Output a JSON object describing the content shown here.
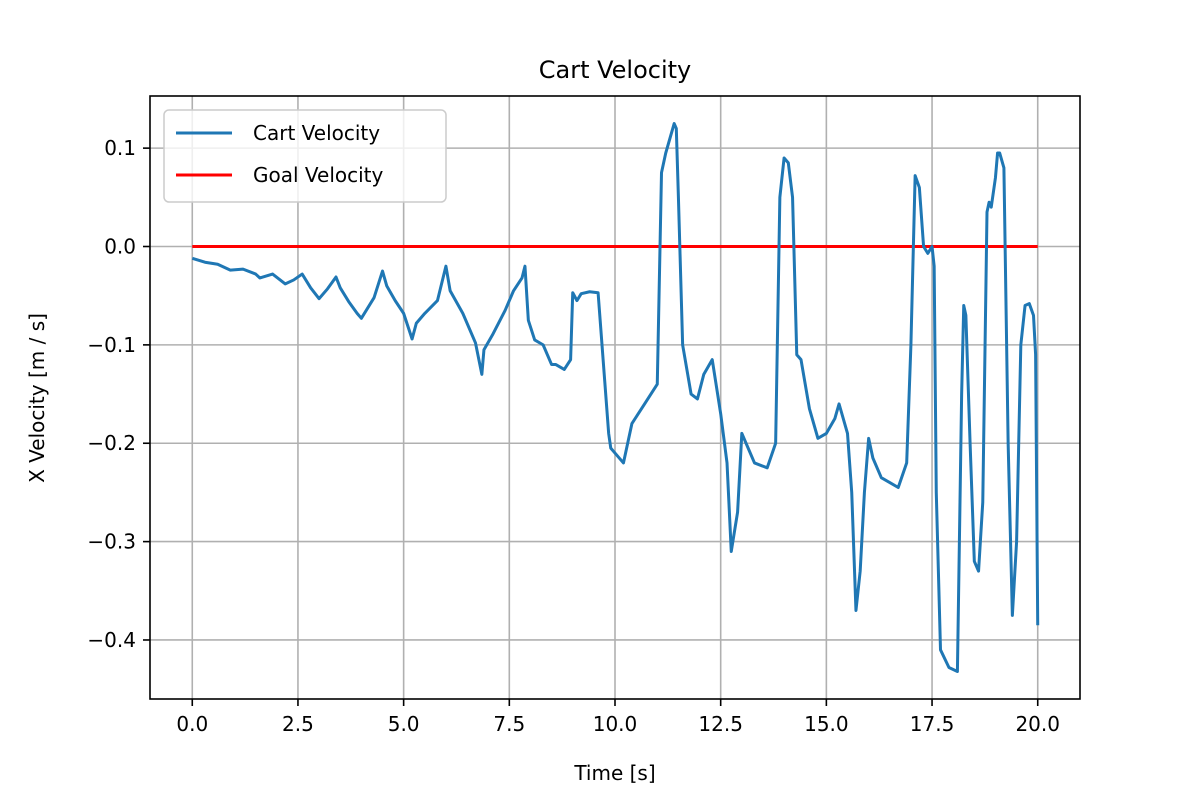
{
  "chart_data": {
    "type": "line",
    "title": "Cart Velocity",
    "xlabel": "Time [s]",
    "ylabel": "X Velocity [m / s]",
    "xlim": [
      -1.0,
      21.0
    ],
    "ylim": [
      -0.46,
      0.153
    ],
    "xticks": [
      0.0,
      2.5,
      5.0,
      7.5,
      10.0,
      12.5,
      15.0,
      17.5,
      20.0
    ],
    "xtick_labels": [
      "0.0",
      "2.5",
      "5.0",
      "7.5",
      "10.0",
      "12.5",
      "15.0",
      "17.5",
      "20.0"
    ],
    "yticks": [
      0.1,
      0.0,
      -0.1,
      -0.2,
      -0.3,
      -0.4
    ],
    "ytick_labels": [
      "0.1",
      "0.0",
      "−0.1",
      "−0.2",
      "−0.3",
      "−0.4"
    ],
    "grid": true,
    "legend_position": "top-left",
    "series": [
      {
        "name": "Cart Velocity",
        "color": "#1f77b4",
        "x": [
          0.0,
          0.3,
          0.6,
          0.9,
          1.2,
          1.5,
          1.6,
          1.9,
          2.2,
          2.4,
          2.6,
          2.8,
          3.0,
          3.2,
          3.4,
          3.5,
          3.7,
          3.9,
          4.0,
          4.3,
          4.5,
          4.6,
          4.8,
          5.0,
          5.2,
          5.3,
          5.5,
          5.8,
          6.0,
          6.1,
          6.4,
          6.7,
          6.85,
          6.9,
          7.1,
          7.4,
          7.6,
          7.8,
          7.87,
          7.95,
          8.1,
          8.3,
          8.5,
          8.6,
          8.8,
          8.95,
          9.0,
          9.1,
          9.2,
          9.4,
          9.6,
          9.85,
          9.9,
          10.0,
          10.2,
          10.4,
          10.7,
          11.0,
          11.1,
          11.2,
          11.3,
          11.4,
          11.45,
          11.5,
          11.6,
          11.8,
          11.95,
          12.1,
          12.3,
          12.5,
          12.65,
          12.75,
          12.9,
          13.0,
          13.1,
          13.3,
          13.6,
          13.8,
          13.9,
          14.0,
          14.1,
          14.2,
          14.3,
          14.4,
          14.6,
          14.8,
          15.0,
          15.2,
          15.3,
          15.5,
          15.6,
          15.7,
          15.8,
          15.9,
          16.0,
          16.1,
          16.3,
          16.5,
          16.7,
          16.9,
          17.0,
          17.1,
          17.2,
          17.3,
          17.4,
          17.5,
          17.55,
          17.6,
          17.7,
          17.9,
          18.1,
          18.2,
          18.25,
          18.3,
          18.4,
          18.5,
          18.6,
          18.7,
          18.8,
          18.85,
          18.9,
          19.0,
          19.05,
          19.1,
          19.2,
          19.3,
          19.4,
          19.5,
          19.6,
          19.7,
          19.8,
          19.9,
          19.95,
          20.0
        ],
        "values": [
          -0.012,
          -0.016,
          -0.018,
          -0.024,
          -0.023,
          -0.028,
          -0.032,
          -0.028,
          -0.038,
          -0.034,
          -0.028,
          -0.042,
          -0.053,
          -0.043,
          -0.031,
          -0.042,
          -0.056,
          -0.068,
          -0.073,
          -0.052,
          -0.025,
          -0.04,
          -0.055,
          -0.068,
          -0.094,
          -0.078,
          -0.068,
          -0.055,
          -0.02,
          -0.045,
          -0.068,
          -0.098,
          -0.13,
          -0.105,
          -0.09,
          -0.065,
          -0.045,
          -0.032,
          -0.02,
          -0.075,
          -0.095,
          -0.1,
          -0.12,
          -0.12,
          -0.125,
          -0.115,
          -0.047,
          -0.055,
          -0.048,
          -0.046,
          -0.047,
          -0.19,
          -0.205,
          -0.21,
          -0.22,
          -0.18,
          -0.16,
          -0.14,
          0.075,
          0.095,
          0.11,
          0.125,
          0.12,
          0.05,
          -0.1,
          -0.15,
          -0.155,
          -0.13,
          -0.115,
          -0.17,
          -0.22,
          -0.31,
          -0.27,
          -0.19,
          -0.2,
          -0.22,
          -0.225,
          -0.2,
          0.05,
          0.09,
          0.085,
          0.05,
          -0.11,
          -0.115,
          -0.165,
          -0.195,
          -0.19,
          -0.175,
          -0.16,
          -0.19,
          -0.25,
          -0.37,
          -0.33,
          -0.25,
          -0.195,
          -0.215,
          -0.235,
          -0.24,
          -0.245,
          -0.22,
          -0.1,
          0.072,
          0.06,
          0.0,
          -0.007,
          0.0,
          -0.02,
          -0.25,
          -0.41,
          -0.428,
          -0.432,
          -0.15,
          -0.06,
          -0.07,
          -0.2,
          -0.32,
          -0.33,
          -0.26,
          0.035,
          0.045,
          0.04,
          0.07,
          0.095,
          0.095,
          0.08,
          -0.2,
          -0.375,
          -0.3,
          -0.1,
          -0.06,
          -0.058,
          -0.07,
          -0.11,
          -0.385
        ]
      },
      {
        "name": "Goal Velocity",
        "color": "#ff0000",
        "x": [
          0.0,
          20.0
        ],
        "values": [
          0.0,
          0.0
        ]
      }
    ]
  }
}
